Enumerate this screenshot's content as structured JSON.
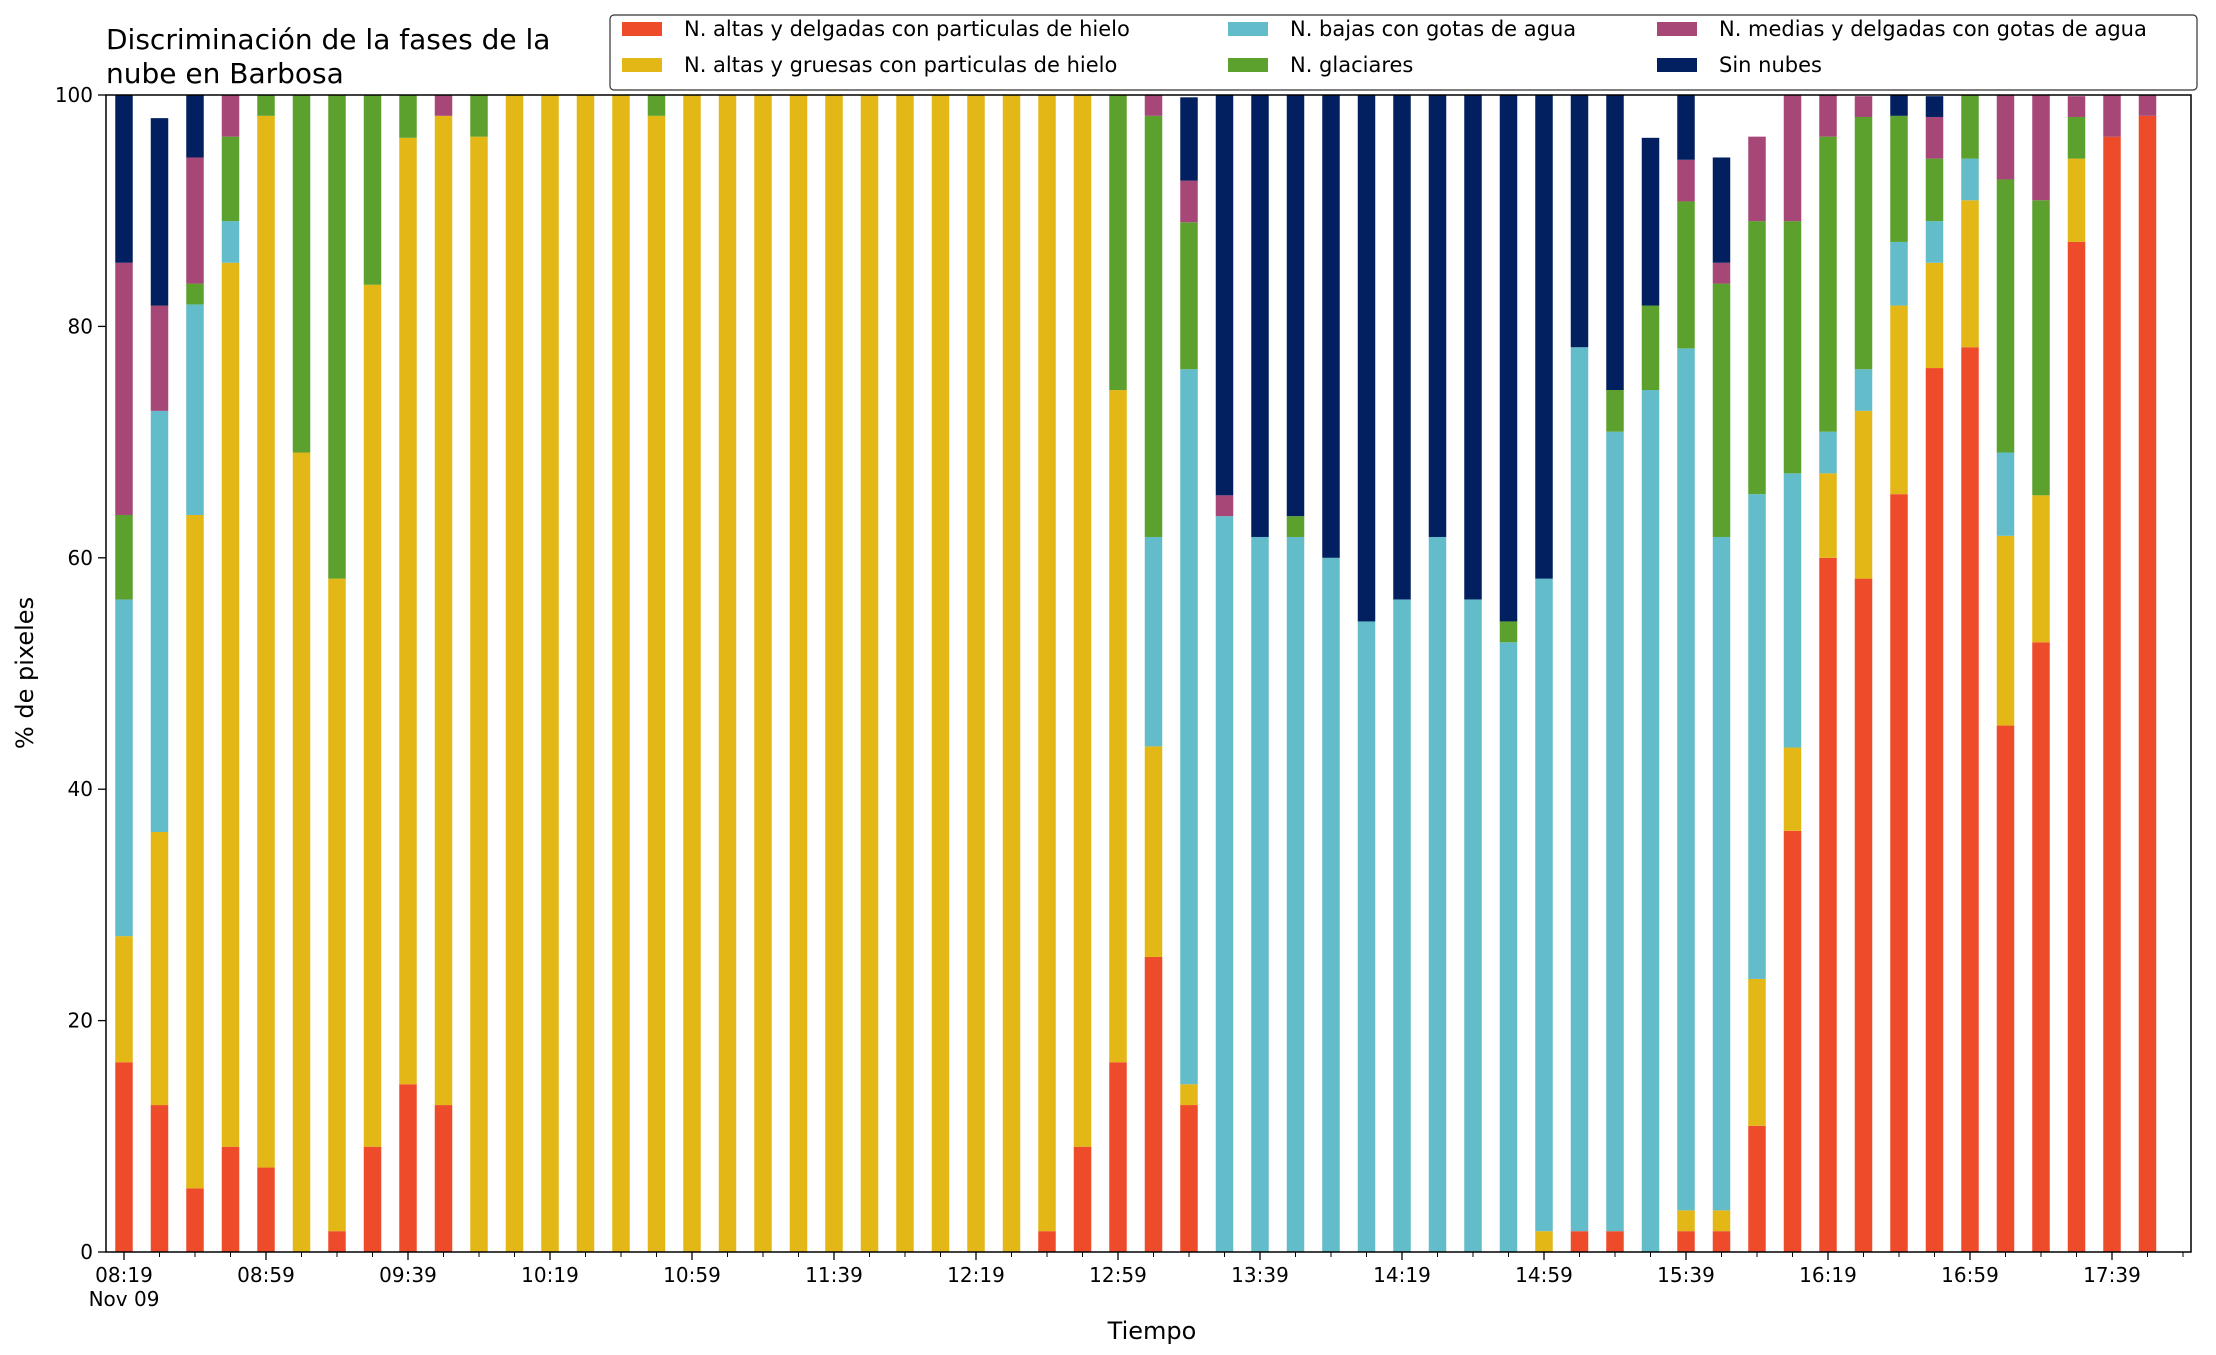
{
  "chart_data": {
    "type": "bar",
    "stacked": true,
    "title_line1": "Discriminación de la fases de la",
    "title_line2": "nube en Barbosa",
    "xlabel": "Tiempo",
    "ylabel": "% de pixeles",
    "ylim": [
      0,
      100
    ],
    "yticks": [
      "0",
      "20",
      "40",
      "60",
      "80",
      "100"
    ],
    "date_label": "Nov 09",
    "xtick_labels": [
      "08:19",
      "08:59",
      "09:39",
      "10:19",
      "10:59",
      "11:39",
      "12:19",
      "12:59",
      "13:39",
      "14:19",
      "14:59",
      "15:39",
      "16:19",
      "16:59",
      "17:39"
    ],
    "xtick_every": 4,
    "grid": false,
    "legend_position": "top-right",
    "categories": [
      "08:19",
      "08:29",
      "08:39",
      "08:49",
      "08:59",
      "09:09",
      "09:19",
      "09:29",
      "09:39",
      "09:49",
      "09:59",
      "10:09",
      "10:19",
      "10:29",
      "10:39",
      "10:49",
      "10:59",
      "11:09",
      "11:19",
      "11:29",
      "11:39",
      "11:49",
      "11:59",
      "12:09",
      "12:19",
      "12:29",
      "12:39",
      "12:49",
      "12:59",
      "13:09",
      "13:19",
      "13:29",
      "13:39",
      "13:49",
      "13:59",
      "14:09",
      "14:19",
      "14:29",
      "14:39",
      "14:49",
      "14:59",
      "15:09",
      "15:19",
      "15:29",
      "15:39",
      "15:49",
      "15:59",
      "16:09",
      "16:19",
      "16:29",
      "16:39",
      "16:49",
      "16:59",
      "17:09",
      "17:19",
      "17:29",
      "17:39",
      "17:49"
    ],
    "series": [
      {
        "name": "N. altas y delgadas con particulas de hielo",
        "color": "#ee4b2b",
        "values": [
          16.4,
          12.7,
          5.5,
          9.1,
          7.3,
          0,
          1.8,
          9.1,
          14.5,
          12.7,
          0,
          0,
          0,
          0,
          0,
          0,
          0,
          0,
          0,
          0,
          0,
          0,
          0,
          0,
          0,
          0,
          1.8,
          9.1,
          16.4,
          25.5,
          12.7,
          0,
          0,
          0,
          0,
          0,
          0,
          0,
          0,
          0,
          0,
          1.8,
          1.8,
          0,
          1.8,
          1.8,
          10.9,
          36.4,
          60,
          58.2,
          65.5,
          76.4,
          78.2,
          45.5,
          52.7,
          87.3,
          96.4,
          98.2
        ]
      },
      {
        "name": "N. altas y gruesas con particulas de hielo",
        "color": "#e3b716",
        "values": [
          10.9,
          23.6,
          58.2,
          76.4,
          90.9,
          69.1,
          56.4,
          74.5,
          81.8,
          85.5,
          96.4,
          100,
          100,
          100,
          100,
          98.2,
          100,
          100,
          100,
          100,
          100,
          100,
          100,
          100,
          100,
          100,
          98.2,
          90.9,
          58.1,
          18.2,
          1.8,
          0,
          0,
          0,
          0,
          0,
          0,
          0,
          0,
          0,
          1.8,
          0,
          0,
          0,
          1.8,
          1.8,
          12.7,
          7.2,
          7.3,
          14.5,
          16.3,
          9.1,
          12.7,
          16.4,
          12.7,
          7.2,
          0,
          0
        ]
      },
      {
        "name": "N. bajas con gotas de agua",
        "color": "#62bcc9",
        "values": [
          29.1,
          36.4,
          18.2,
          3.6,
          0,
          0,
          0,
          0,
          0,
          0,
          0,
          0,
          0,
          0,
          0,
          0,
          0,
          0,
          0,
          0,
          0,
          0,
          0,
          0,
          0,
          0,
          0,
          0,
          0,
          18.1,
          61.8,
          63.6,
          61.8,
          61.8,
          60,
          54.5,
          56.4,
          61.8,
          56.4,
          52.7,
          56.4,
          76.4,
          69.1,
          74.5,
          74.5,
          58.2,
          41.9,
          23.7,
          3.6,
          3.6,
          5.5,
          3.6,
          3.6,
          7.2,
          0,
          0,
          0,
          0
        ]
      },
      {
        "name": "N. glaciares",
        "color": "#5ca12d",
        "values": [
          7.3,
          0,
          1.8,
          7.3,
          1.8,
          30.9,
          41.8,
          16.4,
          3.7,
          0,
          3.6,
          0,
          0,
          0,
          0,
          1.8,
          0,
          0,
          0,
          0,
          0,
          0,
          0,
          0,
          0,
          0,
          0,
          0,
          25.5,
          36.4,
          12.7,
          0,
          0,
          1.8,
          0,
          0,
          0,
          0,
          0,
          1.8,
          0,
          0,
          3.6,
          7.3,
          12.7,
          21.9,
          23.6,
          21.8,
          25.5,
          21.8,
          10.9,
          5.4,
          5.5,
          23.6,
          25.5,
          3.6,
          0,
          0
        ]
      },
      {
        "name": "N. medias y delgadas con gotas de agua",
        "color": "#a64777",
        "values": [
          21.8,
          9.1,
          10.9,
          3.6,
          0,
          0,
          0,
          0,
          0,
          1.8,
          0,
          0,
          0,
          0,
          0,
          0,
          0,
          0,
          0,
          0,
          0,
          0,
          0,
          0,
          0,
          0,
          0,
          0,
          0,
          1.8,
          3.6,
          1.8,
          0,
          0,
          0,
          0,
          0,
          0,
          0,
          0,
          0,
          0,
          0,
          0,
          3.6,
          1.8,
          7.3,
          10.9,
          3.6,
          1.8,
          0,
          3.6,
          0,
          7.3,
          9.1,
          1.8,
          3.6,
          1.8
        ]
      },
      {
        "name": "Sin nubes",
        "color": "#02205f",
        "values": [
          14.5,
          16.2,
          5.4,
          0,
          0,
          0,
          0,
          0,
          0,
          0,
          0,
          0,
          0,
          0,
          0,
          0,
          0,
          0,
          0,
          0,
          0,
          0,
          0,
          0,
          0,
          0,
          0,
          0,
          0,
          0,
          7.2,
          34.6,
          38.2,
          36.4,
          40,
          45.5,
          43.6,
          38.2,
          43.6,
          45.5,
          41.8,
          21.8,
          25.5,
          14.5,
          7.3,
          9.1,
          0,
          0,
          0,
          0,
          1.8,
          1.8,
          0,
          0,
          0,
          0,
          0,
          0
        ]
      }
    ]
  }
}
